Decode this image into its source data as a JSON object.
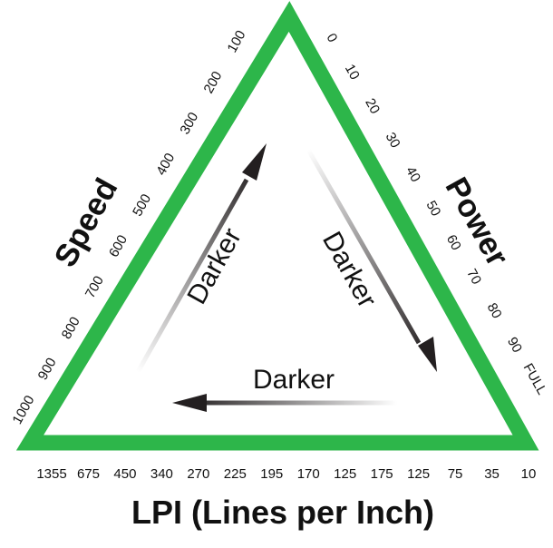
{
  "triangle": {
    "stroke_color": "#2db64a"
  },
  "speed": {
    "title": "Speed",
    "ticks": [
      "1000",
      "900",
      "800",
      "700",
      "600",
      "500",
      "400",
      "300",
      "200",
      "100"
    ]
  },
  "power": {
    "title": "Power",
    "ticks": [
      "0",
      "10",
      "20",
      "30",
      "40",
      "50",
      "60",
      "70",
      "80",
      "90",
      "FULL"
    ]
  },
  "lpi": {
    "title": "LPI (Lines per Inch)",
    "ticks": [
      "1355",
      "675",
      "450",
      "340",
      "270",
      "225",
      "195",
      "170",
      "125",
      "175",
      "125",
      "75",
      "35",
      "10"
    ]
  },
  "arrows": {
    "left_label": "Darker",
    "right_label": "Darker",
    "bottom_label": "Darker",
    "color": "#231f20"
  }
}
